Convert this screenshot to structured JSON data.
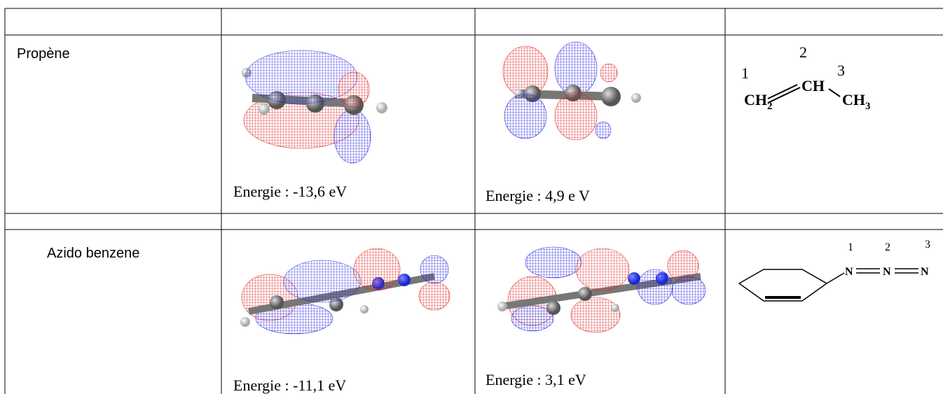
{
  "rows": [
    {
      "name": "Propène",
      "homo_energy": "Energie : -13,6 eV",
      "lumo_energy": "Energie : 4,9 e V",
      "structure": {
        "numbers": [
          "1",
          "2",
          "3"
        ],
        "groups": [
          {
            "main": "CH",
            "sub": "2"
          },
          {
            "main": "CH"
          },
          {
            "main": "CH",
            "sub": "3"
          }
        ]
      }
    },
    {
      "name": "Azido benzene",
      "homo_energy": "Energie :  -11,1 eV",
      "lumo_energy": "Energie : 3,1  eV",
      "structure": {
        "numbers": [
          "1",
          "2",
          "3"
        ],
        "atoms": [
          "N",
          "N",
          "N"
        ]
      }
    }
  ]
}
